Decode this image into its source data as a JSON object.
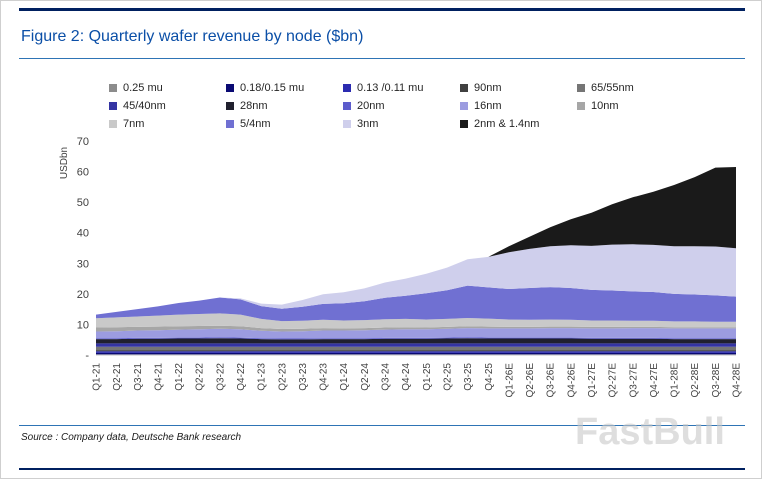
{
  "figure": {
    "title": "Figure 2: Quarterly wafer revenue by node ($bn)",
    "source": "Source : Company data, Deutsche Bank research",
    "watermark": "FastBull",
    "accent_color": "#0b4fa7",
    "rule_color": "#002060"
  },
  "chart_data": {
    "type": "area",
    "stacked": true,
    "title": "Quarterly wafer revenue by node ($bn)",
    "xlabel": "",
    "ylabel": "USDbn",
    "ylim": [
      0,
      70
    ],
    "yticks": [
      0,
      10,
      20,
      30,
      40,
      50,
      60,
      70
    ],
    "ytick_labels": [
      "-",
      "10",
      "20",
      "30",
      "40",
      "50",
      "60",
      "70"
    ],
    "grid": false,
    "legend_position": "top",
    "categories": [
      "Q1-21",
      "Q2-21",
      "Q3-21",
      "Q4-21",
      "Q1-22",
      "Q2-22",
      "Q3-22",
      "Q4-22",
      "Q1-23",
      "Q2-23",
      "Q3-23",
      "Q4-23",
      "Q1-24",
      "Q2-24",
      "Q3-24",
      "Q4-24",
      "Q1-25",
      "Q2-25",
      "Q3-25",
      "Q4-25",
      "Q1-26E",
      "Q2-26E",
      "Q3-26E",
      "Q4-26E",
      "Q1-27E",
      "Q2-27E",
      "Q3-27E",
      "Q4-27E",
      "Q1-28E",
      "Q2-28E",
      "Q3-28E",
      "Q4-28E"
    ],
    "series": [
      {
        "name": "0.25 mu",
        "color": "#8c8c8c",
        "values": [
          0.2,
          0.2,
          0.2,
          0.2,
          0.2,
          0.2,
          0.2,
          0.2,
          0.2,
          0.2,
          0.2,
          0.2,
          0.2,
          0.2,
          0.2,
          0.2,
          0.2,
          0.2,
          0.2,
          0.2,
          0.2,
          0.2,
          0.2,
          0.2,
          0.2,
          0.2,
          0.2,
          0.2,
          0.2,
          0.2,
          0.2,
          0.2
        ]
      },
      {
        "name": "0.18/0.15 mu",
        "color": "#0a0a73",
        "values": [
          0.5,
          0.5,
          0.5,
          0.5,
          0.5,
          0.5,
          0.5,
          0.5,
          0.5,
          0.5,
          0.5,
          0.5,
          0.5,
          0.5,
          0.5,
          0.5,
          0.5,
          0.5,
          0.5,
          0.5,
          0.5,
          0.5,
          0.5,
          0.5,
          0.5,
          0.5,
          0.5,
          0.5,
          0.5,
          0.5,
          0.5,
          0.5
        ]
      },
      {
        "name": "0.13 /0.11 mu",
        "color": "#2b2bb0",
        "values": [
          0.5,
          0.5,
          0.5,
          0.5,
          0.5,
          0.5,
          0.5,
          0.5,
          0.5,
          0.5,
          0.5,
          0.5,
          0.5,
          0.5,
          0.5,
          0.5,
          0.5,
          0.5,
          0.5,
          0.5,
          0.5,
          0.5,
          0.5,
          0.5,
          0.5,
          0.5,
          0.5,
          0.5,
          0.5,
          0.5,
          0.5,
          0.5
        ]
      },
      {
        "name": "90nm",
        "color": "#404040",
        "values": [
          0.4,
          0.4,
          0.4,
          0.4,
          0.4,
          0.4,
          0.4,
          0.4,
          0.4,
          0.4,
          0.4,
          0.4,
          0.4,
          0.4,
          0.4,
          0.4,
          0.4,
          0.4,
          0.4,
          0.4,
          0.4,
          0.4,
          0.4,
          0.4,
          0.4,
          0.4,
          0.4,
          0.4,
          0.4,
          0.4,
          0.4,
          0.4
        ]
      },
      {
        "name": "65/55nm",
        "color": "#757575",
        "values": [
          1.1,
          1.1,
          1.1,
          1.1,
          1.1,
          1.1,
          1.1,
          1.1,
          1.1,
          1.1,
          1.1,
          1.1,
          1.1,
          1.1,
          1.1,
          1.1,
          1.1,
          1.1,
          1.1,
          1.1,
          1.1,
          1.1,
          1.1,
          1.1,
          1.1,
          1.1,
          1.1,
          1.1,
          1.1,
          1.1,
          1.1,
          1.1
        ]
      },
      {
        "name": "45/40nm",
        "color": "#3434a3",
        "values": [
          1.1,
          1.1,
          1.1,
          1.1,
          1.1,
          1.1,
          1.1,
          1.1,
          1.1,
          1.1,
          1.1,
          1.1,
          1.1,
          1.1,
          1.1,
          1.1,
          1.1,
          1.1,
          1.1,
          1.1,
          1.1,
          1.1,
          1.1,
          1.1,
          1.1,
          1.1,
          1.1,
          1.1,
          1.1,
          1.1,
          1.1,
          1.1
        ]
      },
      {
        "name": "28nm",
        "color": "#20202e",
        "values": [
          1.4,
          1.4,
          1.5,
          1.5,
          1.6,
          1.6,
          1.7,
          1.6,
          1.4,
          1.3,
          1.3,
          1.4,
          1.4,
          1.4,
          1.5,
          1.5,
          1.5,
          1.6,
          1.7,
          1.6,
          1.6,
          1.6,
          1.6,
          1.6,
          1.5,
          1.5,
          1.5,
          1.5,
          1.4,
          1.4,
          1.4,
          1.4
        ]
      },
      {
        "name": "20nm",
        "color": "#5c5ccc",
        "values": [
          0.3,
          0.3,
          0.3,
          0.3,
          0.3,
          0.3,
          0.3,
          0.3,
          0.3,
          0.3,
          0.3,
          0.3,
          0.3,
          0.3,
          0.3,
          0.3,
          0.3,
          0.3,
          0.3,
          0.3,
          0.3,
          0.3,
          0.3,
          0.3,
          0.3,
          0.3,
          0.3,
          0.3,
          0.3,
          0.3,
          0.3,
          0.3
        ]
      },
      {
        "name": "16nm",
        "color": "#9c9ce0",
        "values": [
          2.2,
          2.3,
          2.4,
          2.5,
          2.6,
          2.7,
          2.8,
          2.7,
          2.4,
          2.3,
          2.4,
          2.5,
          2.5,
          2.6,
          2.7,
          2.8,
          2.8,
          2.9,
          3.0,
          3.0,
          3.0,
          3.0,
          3.1,
          3.1,
          3.1,
          3.1,
          3.2,
          3.2,
          3.2,
          3.2,
          3.2,
          3.2
        ]
      },
      {
        "name": "10nm",
        "color": "#a6a6a6",
        "values": [
          1.3,
          1.3,
          1.2,
          1.2,
          1.1,
          1.1,
          1.0,
          1.0,
          0.9,
          0.8,
          0.8,
          0.8,
          0.7,
          0.7,
          0.7,
          0.7,
          0.6,
          0.6,
          0.6,
          0.6,
          0.5,
          0.5,
          0.5,
          0.5,
          0.5,
          0.5,
          0.4,
          0.4,
          0.4,
          0.4,
          0.4,
          0.4
        ]
      },
      {
        "name": "7nm",
        "color": "#c9c9c9",
        "values": [
          3.0,
          3.2,
          3.4,
          3.6,
          3.8,
          3.9,
          4.0,
          3.8,
          3.0,
          2.6,
          2.6,
          2.7,
          2.6,
          2.6,
          2.7,
          2.7,
          2.6,
          2.6,
          2.7,
          2.6,
          2.4,
          2.3,
          2.3,
          2.2,
          2.1,
          2.1,
          2.0,
          2.0,
          1.9,
          1.9,
          1.8,
          1.8
        ]
      },
      {
        "name": "5/4nm",
        "color": "#7070d2",
        "values": [
          1.2,
          1.8,
          2.4,
          3.0,
          3.8,
          4.4,
          5.2,
          5.0,
          4.2,
          4.0,
          4.6,
          5.2,
          5.6,
          6.2,
          7.0,
          7.6,
          8.6,
          9.4,
          10.6,
          10.2,
          10.0,
          10.4,
          10.6,
          10.4,
          10.0,
          9.8,
          9.6,
          9.4,
          9.0,
          8.8,
          8.6,
          8.2
        ]
      },
      {
        "name": "3nm",
        "color": "#cfcfec",
        "values": [
          0,
          0,
          0,
          0,
          0,
          0,
          0,
          0.3,
          0.8,
          1.4,
          2.2,
          3.2,
          3.6,
          4.2,
          5.0,
          5.6,
          6.4,
          7.4,
          8.6,
          10.0,
          12.0,
          12.8,
          13.4,
          14.0,
          14.4,
          15.0,
          15.4,
          15.4,
          15.6,
          15.8,
          16.0,
          15.8
        ]
      },
      {
        "name": "2nm & 1.4nm",
        "color": "#1a1a1a",
        "values": [
          0,
          0,
          0,
          0,
          0,
          0,
          0,
          0,
          0,
          0,
          0,
          0,
          0,
          0,
          0,
          0,
          0,
          0,
          0,
          0,
          2.0,
          4.0,
          6.2,
          8.5,
          10.8,
          13.2,
          15.4,
          17.4,
          20.0,
          22.6,
          25.8,
          26.6
        ]
      }
    ]
  }
}
